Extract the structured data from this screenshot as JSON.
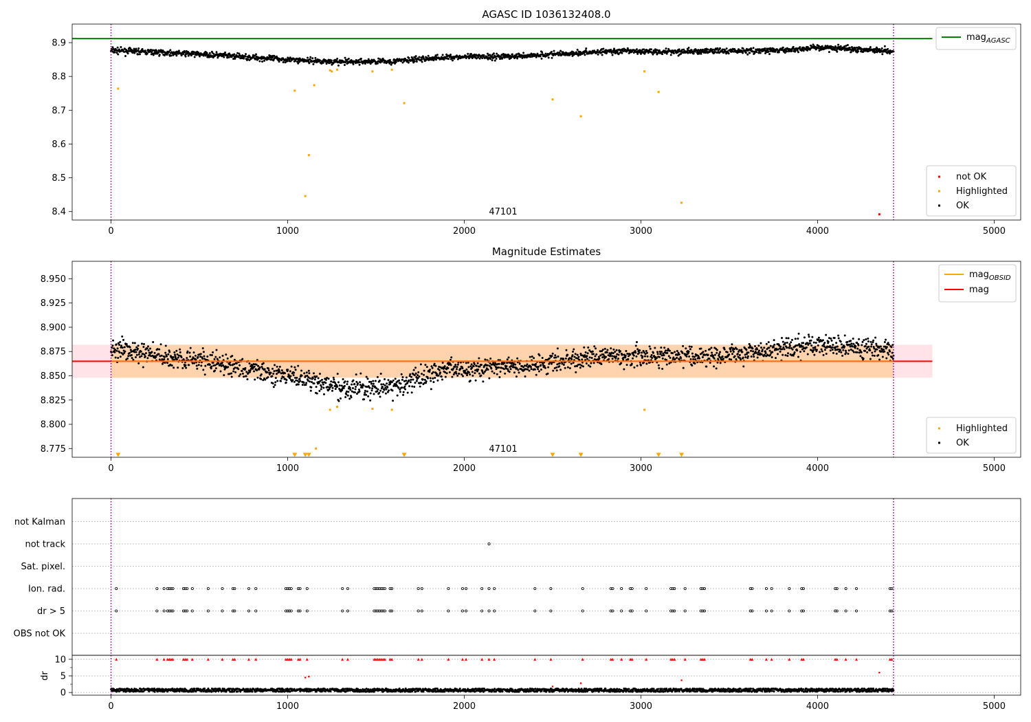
{
  "chart_data": [
    {
      "type": "scatter",
      "title": "AGASC ID 1036132408.0",
      "xlim": [
        -220,
        5150
      ],
      "ylim": [
        8.375,
        8.955
      ],
      "xticks": [
        0,
        1000,
        2000,
        3000,
        4000,
        5000
      ],
      "yticks": [
        8.4,
        8.5,
        8.6,
        8.7,
        8.8,
        8.9
      ],
      "ytick_labels": [
        "8.4",
        "8.5",
        "8.6",
        "8.7",
        "8.8",
        "8.9"
      ],
      "obsid_label": "47101",
      "obsid_label_x": 2150,
      "vlines": [
        0,
        4430
      ],
      "hline": {
        "name": "mag",
        "sub": "AGASC",
        "y": 8.912,
        "x0": -220,
        "x1": 4650,
        "color": "#008000"
      },
      "legend_top": [
        {
          "name": "mag",
          "sub": "AGASC",
          "color": "#008000",
          "kind": "line"
        }
      ],
      "legend_bottom": [
        {
          "name": "not OK",
          "color": "#ff0000",
          "kind": "dot"
        },
        {
          "name": "Highlighted",
          "color": "#ffa500",
          "kind": "dot"
        },
        {
          "name": "OK",
          "color": "#000000",
          "kind": "dot"
        }
      ],
      "ok_series": {
        "name": "OK",
        "color": "#000000",
        "n": 1900,
        "x_range": [
          0,
          4430
        ],
        "trend": [
          [
            0,
            8.877
          ],
          [
            500,
            8.866
          ],
          [
            1000,
            8.85
          ],
          [
            1300,
            8.843
          ],
          [
            1600,
            8.845
          ],
          [
            1900,
            8.857
          ],
          [
            2300,
            8.86
          ],
          [
            2800,
            8.874
          ],
          [
            3300,
            8.874
          ],
          [
            3800,
            8.877
          ],
          [
            4000,
            8.886
          ],
          [
            4430,
            8.876
          ]
        ],
        "scatter": 0.007
      },
      "highlighted": {
        "name": "Highlighted",
        "color": "#ffa500",
        "points": [
          [
            40,
            8.764
          ],
          [
            1040,
            8.758
          ],
          [
            1100,
            8.446
          ],
          [
            1120,
            8.567
          ],
          [
            1150,
            8.774
          ],
          [
            1250,
            8.815
          ],
          [
            1280,
            8.82
          ],
          [
            1480,
            8.815
          ],
          [
            1660,
            8.721
          ],
          [
            2500,
            8.732
          ],
          [
            2660,
            8.682
          ],
          [
            3020,
            8.815
          ],
          [
            3100,
            8.754
          ],
          [
            3230,
            8.426
          ],
          [
            1240,
            8.818
          ],
          [
            1590,
            8.82
          ]
        ]
      },
      "not_ok": {
        "name": "not OK",
        "color": "#ff0000",
        "points": [
          [
            4350,
            8.392
          ]
        ]
      }
    },
    {
      "type": "scatter",
      "title": "Magnitude Estimates",
      "xlim": [
        -220,
        5150
      ],
      "ylim": [
        8.766,
        8.968
      ],
      "xticks": [
        0,
        1000,
        2000,
        3000,
        4000,
        5000
      ],
      "yticks": [
        8.775,
        8.8,
        8.825,
        8.85,
        8.875,
        8.9,
        8.925,
        8.95
      ],
      "ytick_labels": [
        "8.775",
        "8.800",
        "8.825",
        "8.850",
        "8.875",
        "8.900",
        "8.925",
        "8.950"
      ],
      "obsid_label": "47101",
      "obsid_label_x": 2150,
      "vlines": [
        0,
        4430
      ],
      "band_pink": {
        "y0": 8.848,
        "y1": 8.882,
        "x0": -220,
        "x1": 4650,
        "color": "#ffc0cb"
      },
      "band_orange": {
        "y0": 8.848,
        "y1": 8.882,
        "x0": 0,
        "x1": 4430,
        "color": "#ffa500"
      },
      "mag_line": {
        "name": "mag",
        "y": 8.865,
        "x0": -220,
        "x1": 4650,
        "color": "#ff0000"
      },
      "mag_obsid_line": {
        "name": "mag",
        "sub": "OBSID",
        "y": 8.865,
        "x0": 0,
        "x1": 4430,
        "color": "#ffa500"
      },
      "legend_top": [
        {
          "name": "mag",
          "sub": "OBSID",
          "color": "#ffa500",
          "kind": "line"
        },
        {
          "name": "mag",
          "sub": "",
          "color": "#ff0000",
          "kind": "line"
        }
      ],
      "legend_bottom": [
        {
          "name": "Highlighted",
          "color": "#ffa500",
          "kind": "dot"
        },
        {
          "name": "OK",
          "color": "#000000",
          "kind": "dot"
        }
      ],
      "ok_series": {
        "name": "OK",
        "color": "#000000",
        "n": 1900,
        "x_range": [
          0,
          4430
        ],
        "trend": [
          [
            0,
            8.877
          ],
          [
            500,
            8.866
          ],
          [
            1000,
            8.85
          ],
          [
            1300,
            8.837
          ],
          [
            1600,
            8.838
          ],
          [
            1900,
            8.857
          ],
          [
            2300,
            8.86
          ],
          [
            2800,
            8.87
          ],
          [
            3300,
            8.87
          ],
          [
            3800,
            8.877
          ],
          [
            4000,
            8.883
          ],
          [
            4430,
            8.876
          ]
        ],
        "scatter": 0.009
      },
      "highlighted": {
        "name": "Highlighted",
        "color": "#ffa500",
        "points": [
          [
            1240,
            8.815
          ],
          [
            1280,
            8.818
          ],
          [
            1480,
            8.816
          ],
          [
            1590,
            8.815
          ],
          [
            3020,
            8.815
          ],
          [
            1160,
            8.775
          ]
        ]
      },
      "low_markers": {
        "color": "#ffa500",
        "x": [
          40,
          1040,
          1100,
          1120,
          1660,
          2500,
          2660,
          3100,
          3230
        ]
      }
    },
    {
      "type": "scatter",
      "title": "",
      "xlim": [
        -220,
        5150
      ],
      "xticks": [
        0,
        1000,
        2000,
        3000,
        4000,
        5000
      ],
      "vlines": [
        0,
        4430
      ],
      "categories": [
        "OBS not OK",
        "dr > 5",
        "Ion. rad.",
        "Sat. pixel.",
        "not track",
        "not Kalman"
      ],
      "flag_x": [
        30,
        260,
        300,
        320,
        330,
        340,
        350,
        410,
        420,
        430,
        460,
        550,
        630,
        690,
        700,
        780,
        820,
        990,
        1000,
        1010,
        1020,
        1060,
        1070,
        1110,
        1310,
        1340,
        1490,
        1500,
        1510,
        1520,
        1530,
        1540,
        1550,
        1580,
        1590,
        1740,
        1760,
        1910,
        1990,
        2010,
        2100,
        2140,
        2170,
        2400,
        2490,
        2670,
        2830,
        2840,
        2890,
        2940,
        2950,
        3030,
        3170,
        3180,
        3190,
        3250,
        3340,
        3350,
        3360,
        3620,
        3630,
        3710,
        3740,
        3840,
        3910,
        3920,
        4100,
        4110,
        4160,
        4220,
        4410,
        4420
      ],
      "flag_rows": [
        "dr > 5",
        "Ion. rad."
      ],
      "not_track_x": [
        2140
      ],
      "dr": {
        "ylabel": "dr",
        "ylim": [
          -0.8,
          11.2
        ],
        "yticks": [
          0,
          5,
          10
        ],
        "ytick_labels": [
          "0",
          "5",
          "10"
        ],
        "clip_value": 10,
        "clip_color": "#ff0000",
        "outliers": [
          [
            1100,
            4.5
          ],
          [
            1120,
            4.8
          ],
          [
            2500,
            1.8
          ],
          [
            2660,
            2.8
          ],
          [
            3230,
            3.7
          ],
          [
            4350,
            6.0
          ]
        ],
        "ok_n": 1900,
        "ok_range": [
          0.2,
          1.2
        ]
      }
    }
  ]
}
